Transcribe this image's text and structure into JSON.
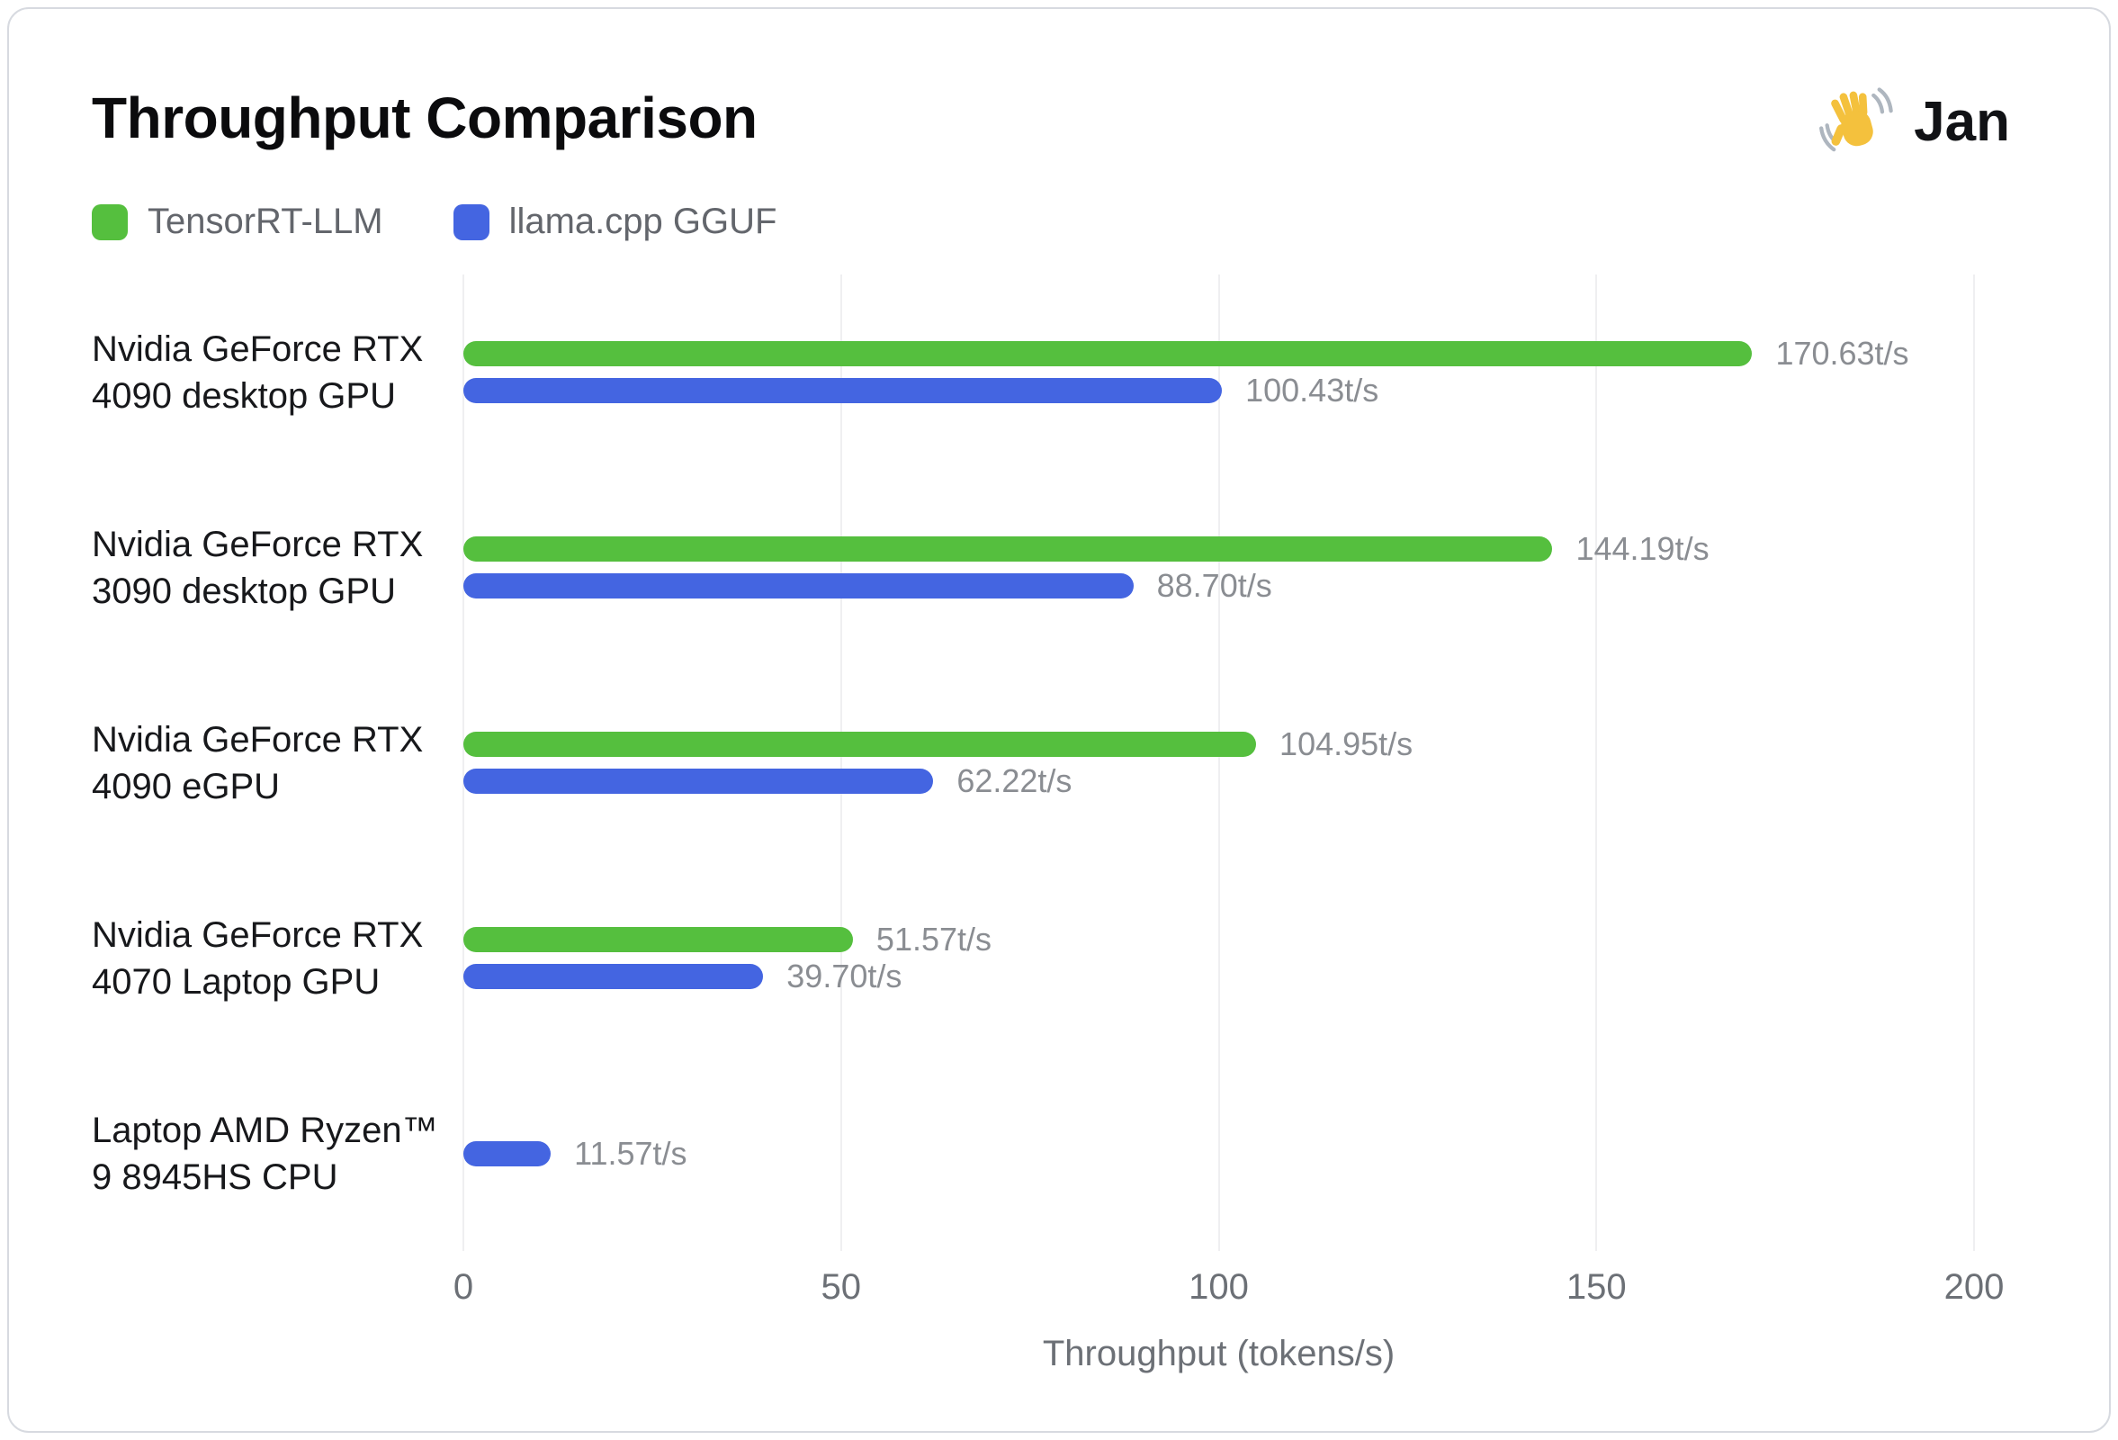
{
  "header": {
    "title": "Throughput Comparison",
    "brand": {
      "name": "Jan",
      "icon": "waving-hand"
    }
  },
  "chart_data": {
    "type": "bar",
    "orientation": "horizontal",
    "title": "Throughput Comparison",
    "xlabel": "Throughput (tokens/s)",
    "xlim": [
      0,
      200
    ],
    "xticks": [
      "0",
      "50",
      "100",
      "150",
      "200"
    ],
    "grid": true,
    "legend_position": "top-left",
    "value_suffix": "t/s",
    "categories": [
      "Nvidia GeForce RTX 4090 desktop GPU",
      "Nvidia GeForce RTX 3090 desktop GPU",
      "Nvidia GeForce RTX 4090 eGPU",
      "Nvidia GeForce RTX 4070 Laptop GPU",
      "Laptop AMD Ryzen™ 9 8945HS CPU"
    ],
    "series": [
      {
        "name": "TensorRT-LLM",
        "color": "#55BF3E",
        "values": [
          170.63,
          144.19,
          104.95,
          51.57,
          null
        ],
        "labels": [
          "170.63t/s",
          "144.19t/s",
          "104.95t/s",
          "51.57t/s",
          null
        ]
      },
      {
        "name": "llama.cpp GGUF",
        "color": "#4465E1",
        "values": [
          100.43,
          88.7,
          62.22,
          39.7,
          11.57
        ],
        "labels": [
          "100.43t/s",
          "88.70t/s",
          "62.22t/s",
          "39.70t/s",
          "11.57t/s"
        ]
      }
    ]
  },
  "colors": {
    "grid": "#EFEFF1",
    "card_border": "#D7DAE0",
    "value_label": "#8A8D92",
    "axis_text": "#6C7076",
    "legend_text": "#63666C"
  }
}
